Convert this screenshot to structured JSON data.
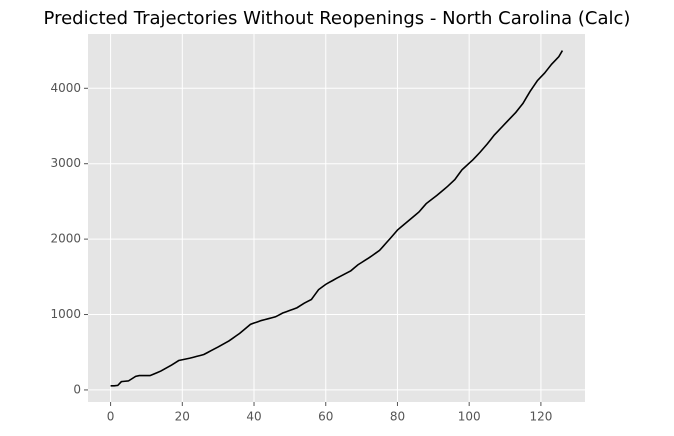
{
  "chart_data": {
    "type": "line",
    "title": "Predicted Trajectories Without Reopenings - North Carolina (Calc)",
    "x": [
      0,
      1,
      2,
      3,
      4,
      5,
      6,
      7,
      8,
      9,
      10,
      11,
      12,
      13,
      14,
      15,
      16,
      17,
      18,
      19,
      20,
      21,
      22,
      23,
      24,
      25,
      26,
      27,
      28,
      29,
      30,
      31,
      32,
      33,
      34,
      35,
      36,
      37,
      38,
      39,
      40,
      41,
      42,
      43,
      44,
      45,
      46,
      47,
      48,
      49,
      50,
      51,
      52,
      53,
      54,
      55,
      56,
      57,
      58,
      59,
      60,
      61,
      62,
      63,
      64,
      65,
      66,
      67,
      68,
      69,
      70,
      71,
      72,
      73,
      74,
      75,
      76,
      77,
      78,
      79,
      80,
      81,
      82,
      83,
      84,
      85,
      86,
      87,
      88,
      89,
      90,
      91,
      92,
      93,
      94,
      95,
      96,
      97,
      98,
      99,
      100,
      101,
      102,
      103,
      104,
      105,
      106,
      107,
      108,
      109,
      110,
      111,
      112,
      113,
      114,
      115,
      116,
      117,
      118,
      119,
      120,
      121,
      122,
      123,
      124,
      125,
      126
    ],
    "series": [
      {
        "color": "#000000",
        "values": [
          55,
          55,
          60,
          110,
          115,
          120,
          150,
          180,
          190,
          190,
          190,
          190,
          210,
          230,
          250,
          277,
          303,
          330,
          360,
          390,
          400,
          410,
          420,
          432,
          445,
          457,
          470,
          495,
          520,
          545,
          570,
          597,
          623,
          650,
          683,
          717,
          750,
          790,
          830,
          870,
          887,
          903,
          920,
          932,
          945,
          957,
          970,
          995,
          1020,
          1037,
          1055,
          1072,
          1090,
          1120,
          1150,
          1175,
          1200,
          1265,
          1330,
          1365,
          1400,
          1427,
          1453,
          1480,
          1505,
          1530,
          1555,
          1580,
          1620,
          1660,
          1690,
          1720,
          1750,
          1783,
          1817,
          1850,
          1903,
          1957,
          2010,
          2065,
          2120,
          2160,
          2200,
          2240,
          2280,
          2320,
          2360,
          2415,
          2470,
          2507,
          2543,
          2580,
          2620,
          2660,
          2700,
          2745,
          2790,
          2855,
          2920,
          2963,
          3007,
          3050,
          3100,
          3150,
          3205,
          3260,
          3320,
          3380,
          3430,
          3480,
          3530,
          3580,
          3630,
          3680,
          3740,
          3800,
          3880,
          3960,
          4030,
          4100,
          4150,
          4200,
          4260,
          4320,
          4370,
          4420,
          4500
        ]
      }
    ],
    "xlim": [
      -6.3,
      132.3
    ],
    "ylim": [
      -160,
      4720
    ],
    "xticks": [
      0,
      20,
      40,
      60,
      80,
      100,
      120
    ],
    "yticks": [
      0,
      1000,
      2000,
      3000,
      4000
    ],
    "grid": true
  }
}
